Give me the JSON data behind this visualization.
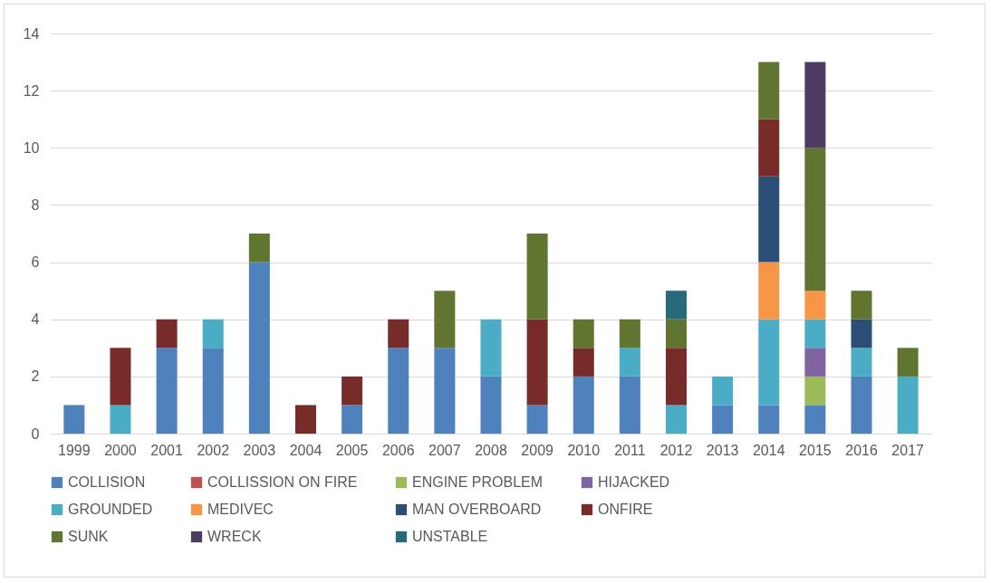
{
  "chart_data": {
    "type": "bar",
    "stacked": true,
    "categories": [
      "1999",
      "2000",
      "2001",
      "2002",
      "2003",
      "2004",
      "2005",
      "2006",
      "2007",
      "2008",
      "2009",
      "2010",
      "2011",
      "2012",
      "2013",
      "2014",
      "2015",
      "2016",
      "2017"
    ],
    "series": [
      {
        "name": "COLLISION",
        "color": "#4f81bd",
        "values": [
          1,
          null,
          3,
          3,
          6,
          null,
          1,
          3,
          3,
          2,
          1,
          2,
          2,
          null,
          1,
          1,
          1,
          2,
          null
        ]
      },
      {
        "name": "COLLISSION ON FIRE",
        "color": "#c0504d",
        "values": [
          null,
          null,
          null,
          null,
          null,
          null,
          null,
          null,
          null,
          null,
          null,
          null,
          null,
          null,
          null,
          null,
          null,
          null,
          null
        ]
      },
      {
        "name": "ENGINE PROBLEM",
        "color": "#9bbb59",
        "values": [
          null,
          null,
          null,
          null,
          null,
          null,
          null,
          null,
          null,
          null,
          null,
          null,
          null,
          null,
          null,
          null,
          1,
          null,
          null
        ]
      },
      {
        "name": "HIJACKED",
        "color": "#8064a2",
        "values": [
          null,
          null,
          null,
          null,
          null,
          null,
          null,
          null,
          null,
          null,
          null,
          null,
          null,
          null,
          null,
          null,
          1,
          null,
          null
        ]
      },
      {
        "name": "GROUNDED",
        "color": "#4bacc6",
        "values": [
          null,
          1,
          null,
          1,
          null,
          null,
          null,
          null,
          null,
          2,
          null,
          null,
          1,
          1,
          1,
          3,
          1,
          1,
          2
        ]
      },
      {
        "name": "MEDIVEC",
        "color": "#f79646",
        "values": [
          null,
          null,
          null,
          null,
          null,
          null,
          null,
          null,
          null,
          null,
          null,
          null,
          null,
          null,
          null,
          2,
          1,
          null,
          null
        ]
      },
      {
        "name": "MAN OVERBOARD",
        "color": "#2c4d75",
        "values": [
          null,
          null,
          null,
          null,
          null,
          null,
          null,
          null,
          null,
          null,
          null,
          null,
          null,
          null,
          null,
          3,
          null,
          1,
          null
        ]
      },
      {
        "name": "ONFIRE",
        "color": "#772c2a",
        "values": [
          null,
          2,
          1,
          null,
          null,
          1,
          1,
          1,
          null,
          null,
          3,
          1,
          null,
          2,
          null,
          2,
          null,
          null,
          null
        ]
      },
      {
        "name": "SUNK",
        "color": "#5f7530",
        "values": [
          null,
          null,
          null,
          null,
          1,
          null,
          null,
          null,
          2,
          null,
          3,
          1,
          1,
          1,
          null,
          2,
          5,
          1,
          1
        ]
      },
      {
        "name": "WRECK",
        "color": "#4d3b62",
        "values": [
          null,
          null,
          null,
          null,
          null,
          null,
          null,
          null,
          null,
          null,
          null,
          null,
          null,
          null,
          null,
          null,
          3,
          null,
          null
        ]
      },
      {
        "name": "UNSTABLE",
        "color": "#276a7c",
        "values": [
          null,
          null,
          null,
          null,
          null,
          null,
          null,
          null,
          null,
          null,
          null,
          null,
          null,
          1,
          null,
          null,
          null,
          null,
          null
        ]
      }
    ],
    "ylim": [
      0,
      14
    ],
    "yticks": [
      0,
      2,
      4,
      6,
      8,
      10,
      12,
      14
    ],
    "grid": "y",
    "legend": "bottom"
  }
}
